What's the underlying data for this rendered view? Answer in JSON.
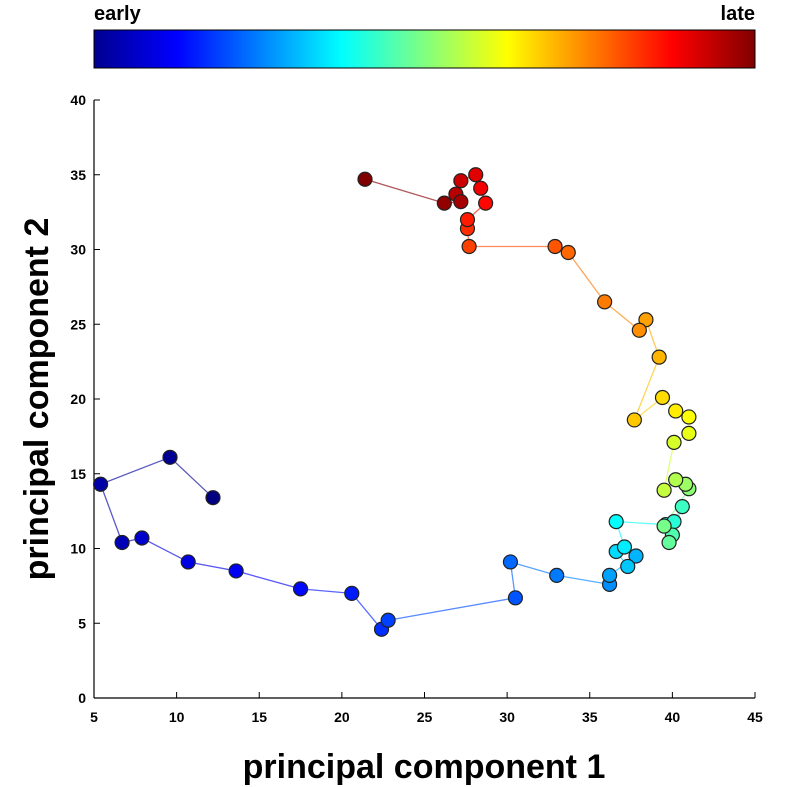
{
  "chart_data": {
    "type": "scatter",
    "title": "",
    "xlabel": "principal component 1",
    "ylabel": "principal component 2",
    "xlim": [
      5,
      45
    ],
    "ylim": [
      0,
      40
    ],
    "xticks": [
      5,
      10,
      15,
      20,
      25,
      30,
      35,
      40,
      45
    ],
    "yticks": [
      0,
      5,
      10,
      15,
      20,
      25,
      30,
      35,
      40
    ],
    "grid": false,
    "connected": true,
    "colormap": "jet",
    "colorbar": {
      "label_start": "early",
      "label_end": "late",
      "colors": [
        "#00008f",
        "#0000ff",
        "#0080ff",
        "#00ffff",
        "#80ff80",
        "#ffff00",
        "#ff8000",
        "#ff0000",
        "#800000"
      ]
    },
    "series": [
      {
        "points": [
          [
            12.2,
            13.4
          ],
          [
            9.6,
            16.1
          ],
          [
            5.4,
            14.3
          ],
          [
            6.7,
            10.4
          ],
          [
            7.9,
            10.7
          ],
          [
            10.7,
            9.1
          ],
          [
            13.6,
            8.5
          ],
          [
            17.5,
            7.3
          ],
          [
            20.6,
            7.0
          ],
          [
            22.4,
            4.6
          ],
          [
            22.8,
            5.2
          ],
          [
            30.5,
            6.7
          ],
          [
            30.2,
            9.1
          ],
          [
            33.0,
            8.2
          ],
          [
            36.2,
            7.6
          ],
          [
            36.2,
            8.2
          ],
          [
            37.8,
            9.5
          ],
          [
            37.3,
            8.8
          ],
          [
            36.6,
            9.8
          ],
          [
            37.1,
            10.1
          ],
          [
            36.6,
            11.8
          ],
          [
            39.6,
            11.6
          ],
          [
            40.1,
            11.8
          ],
          [
            40.6,
            12.8
          ],
          [
            40.0,
            10.9
          ],
          [
            39.8,
            10.4
          ],
          [
            39.5,
            11.5
          ],
          [
            41.0,
            14.0
          ],
          [
            40.8,
            14.3
          ],
          [
            40.2,
            14.6
          ],
          [
            39.5,
            13.9
          ],
          [
            40.1,
            17.1
          ],
          [
            41.0,
            17.7
          ],
          [
            41.0,
            18.8
          ],
          [
            40.2,
            19.2
          ],
          [
            39.4,
            20.1
          ],
          [
            37.7,
            18.6
          ],
          [
            39.2,
            22.8
          ],
          [
            38.4,
            25.3
          ],
          [
            38.0,
            24.6
          ],
          [
            35.9,
            26.5
          ],
          [
            33.7,
            29.8
          ],
          [
            32.9,
            30.2
          ],
          [
            27.7,
            30.2
          ],
          [
            27.6,
            31.4
          ],
          [
            27.6,
            32.0
          ],
          [
            28.7,
            33.1
          ],
          [
            28.4,
            34.1
          ],
          [
            28.1,
            35.0
          ],
          [
            27.2,
            34.6
          ],
          [
            26.9,
            33.7
          ],
          [
            27.2,
            33.2
          ],
          [
            26.2,
            33.1
          ],
          [
            21.4,
            34.7
          ]
        ]
      }
    ]
  }
}
